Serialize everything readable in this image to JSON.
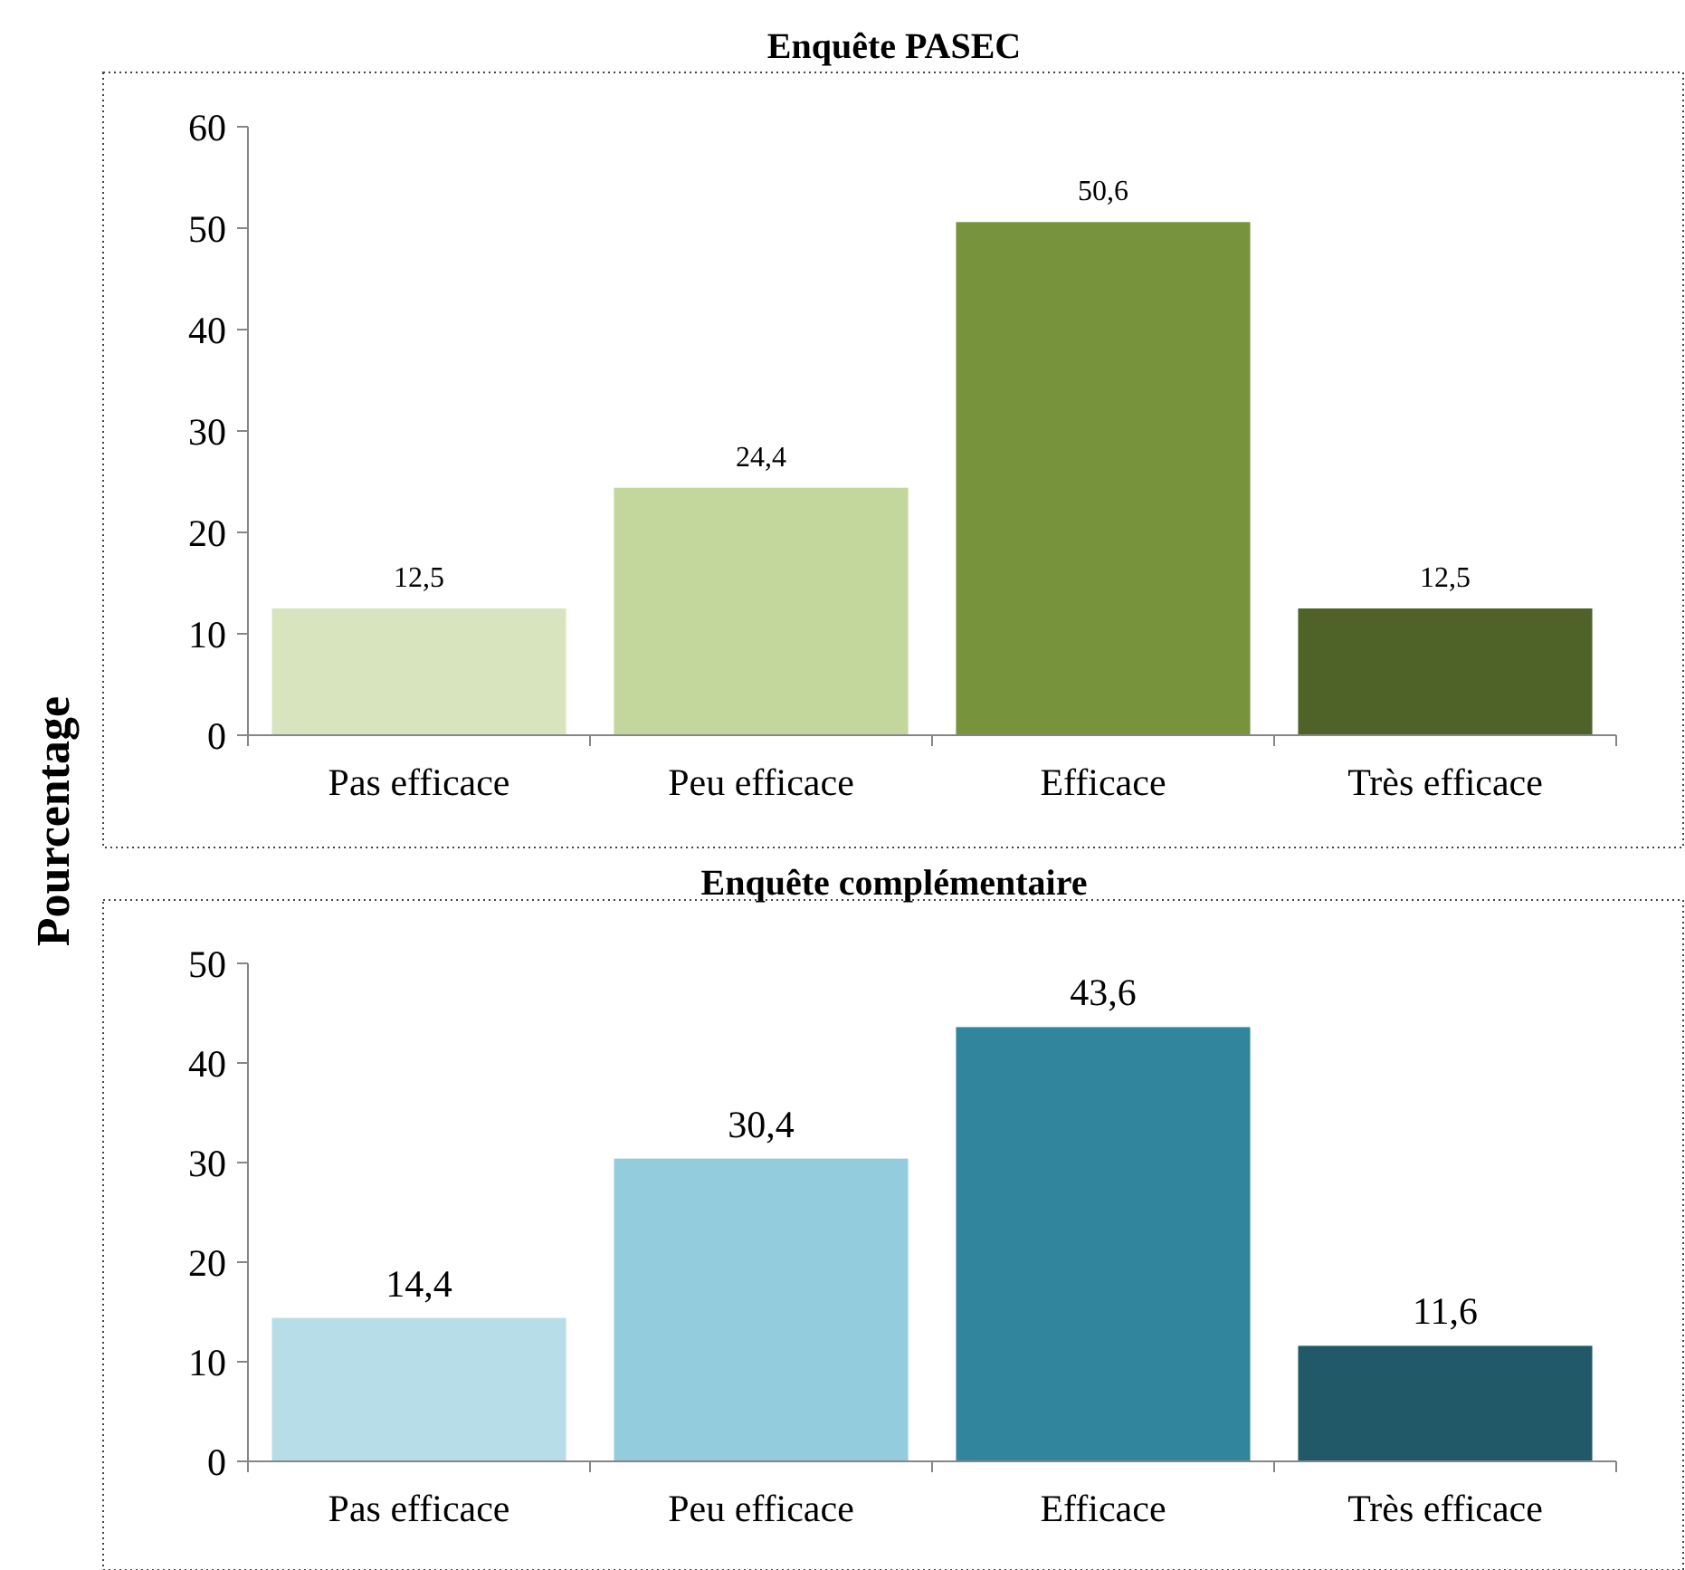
{
  "chart_data": [
    {
      "type": "bar",
      "title": "Enquête PASEC",
      "ylabel": "Pourcentage",
      "categories": [
        "Pas efficace",
        "Peu efficace",
        "Efficace",
        "Très efficace"
      ],
      "values": [
        12.5,
        24.4,
        50.6,
        12.5
      ],
      "colors": [
        "#d7e4bd",
        "#c3d69b",
        "#77933c",
        "#4f6228"
      ],
      "value_labels": [
        "12,5",
        "24,4",
        "50,6",
        "12,5"
      ],
      "ylim": [
        0,
        60
      ],
      "yticks": [
        0,
        10,
        20,
        30,
        40,
        50,
        60
      ]
    },
    {
      "type": "bar",
      "title": "Enquête complémentaire",
      "categories": [
        "Pas efficace",
        "Peu efficace",
        "Efficace",
        "Très efficace"
      ],
      "values": [
        14.4,
        30.4,
        43.6,
        11.6
      ],
      "colors": [
        "#b7dee8",
        "#93cddd",
        "#31859c",
        "#215968"
      ],
      "value_labels": [
        "14,4",
        "30,4",
        "43,6",
        "11,6"
      ],
      "ylim": [
        0,
        50
      ],
      "yticks": [
        0,
        10,
        20,
        30,
        40,
        50
      ]
    }
  ]
}
